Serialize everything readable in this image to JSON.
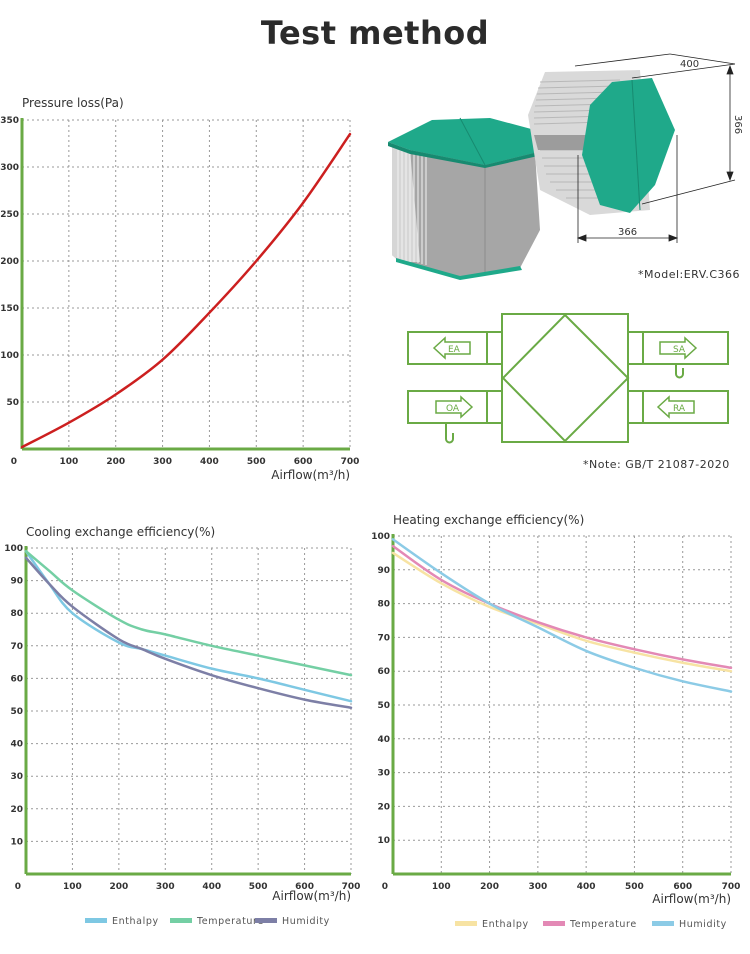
{
  "page": {
    "title": "Test method",
    "model_note": "*Model:ERV.C366",
    "standard_note": "*Note: GB/T 21087-2020"
  },
  "product_image": {
    "dimensions": {
      "length": "400",
      "height": "366",
      "width": "366"
    },
    "colors": {
      "cap": "#1fa98a",
      "body": "#a9a9a9"
    }
  },
  "flow_diagram": {
    "labels": [
      "EA",
      "SA",
      "OA",
      "RA"
    ],
    "color": "#6aaa45"
  },
  "chart_data": [
    {
      "type": "line",
      "title": "Pressure loss(Pa)",
      "xlabel": "Airflow(m³/h)",
      "ylabel": "Pressure loss(Pa)",
      "x_ticks": [
        0,
        100,
        200,
        300,
        400,
        500,
        600,
        700
      ],
      "y_ticks": [
        50,
        100,
        150,
        200,
        250,
        300,
        350
      ],
      "xlim": [
        0,
        700
      ],
      "ylim": [
        0,
        350
      ],
      "grid": true,
      "series": [
        {
          "name": "Pressure loss",
          "color": "#cc1f1f",
          "x": [
            0,
            100,
            200,
            300,
            400,
            500,
            600,
            700
          ],
          "values": [
            2,
            28,
            58,
            95,
            145,
            200,
            262,
            335
          ]
        }
      ]
    },
    {
      "type": "line",
      "title": "Cooling exchange efficiency(%)",
      "xlabel": "Airflow(m³/h)",
      "ylabel": "Cooling exchange efficiency(%)",
      "x_ticks": [
        0,
        100,
        200,
        300,
        400,
        500,
        600,
        700
      ],
      "y_ticks": [
        10,
        20,
        30,
        40,
        50,
        60,
        70,
        80,
        90,
        100
      ],
      "xlim": [
        0,
        700
      ],
      "ylim": [
        0,
        100
      ],
      "grid": true,
      "legend_position": "bottom",
      "series": [
        {
          "name": "Enthalpy",
          "color": "#7ec8e3",
          "x": [
            0,
            50,
            100,
            200,
            250,
            300,
            400,
            500,
            600,
            700
          ],
          "values": [
            99,
            89,
            80,
            71,
            69,
            67,
            63,
            60,
            56.5,
            53
          ]
        },
        {
          "name": "Temperature",
          "color": "#74cfa4",
          "x": [
            0,
            50,
            100,
            200,
            250,
            300,
            400,
            500,
            600,
            700
          ],
          "values": [
            99,
            93,
            87,
            78,
            75,
            73.5,
            70,
            67,
            64,
            61
          ]
        },
        {
          "name": "Humidity",
          "color": "#7d7fa6",
          "x": [
            0,
            50,
            100,
            200,
            250,
            300,
            400,
            500,
            600,
            700
          ],
          "values": [
            97,
            89,
            82,
            72,
            69,
            66,
            61,
            57,
            53.5,
            51
          ]
        }
      ]
    },
    {
      "type": "line",
      "title": "Heating exchange efficiency(%)",
      "xlabel": "Airflow(m³/h)",
      "ylabel": "Heating exchange efficiency(%)",
      "x_ticks": [
        0,
        100,
        200,
        300,
        400,
        500,
        600,
        700
      ],
      "y_ticks": [
        10,
        20,
        30,
        40,
        50,
        60,
        70,
        80,
        90,
        100
      ],
      "xlim": [
        0,
        700
      ],
      "ylim": [
        0,
        100
      ],
      "grid": true,
      "legend_position": "bottom",
      "series": [
        {
          "name": "Enthalpy",
          "color": "#f7e3a3",
          "x": [
            0,
            100,
            200,
            300,
            400,
            500,
            600,
            700
          ],
          "values": [
            95,
            86,
            79,
            74,
            69,
            65.5,
            62.5,
            60
          ]
        },
        {
          "name": "Temperature",
          "color": "#e389b5",
          "x": [
            0,
            100,
            200,
            300,
            400,
            500,
            600,
            700
          ],
          "values": [
            97,
            87,
            80,
            74.5,
            70,
            66.5,
            63.5,
            61
          ]
        },
        {
          "name": "Humidity",
          "color": "#8ccbe6",
          "x": [
            0,
            100,
            200,
            300,
            400,
            500,
            600,
            700
          ],
          "values": [
            99,
            89,
            80,
            73,
            66,
            61,
            57,
            54
          ]
        }
      ]
    }
  ]
}
